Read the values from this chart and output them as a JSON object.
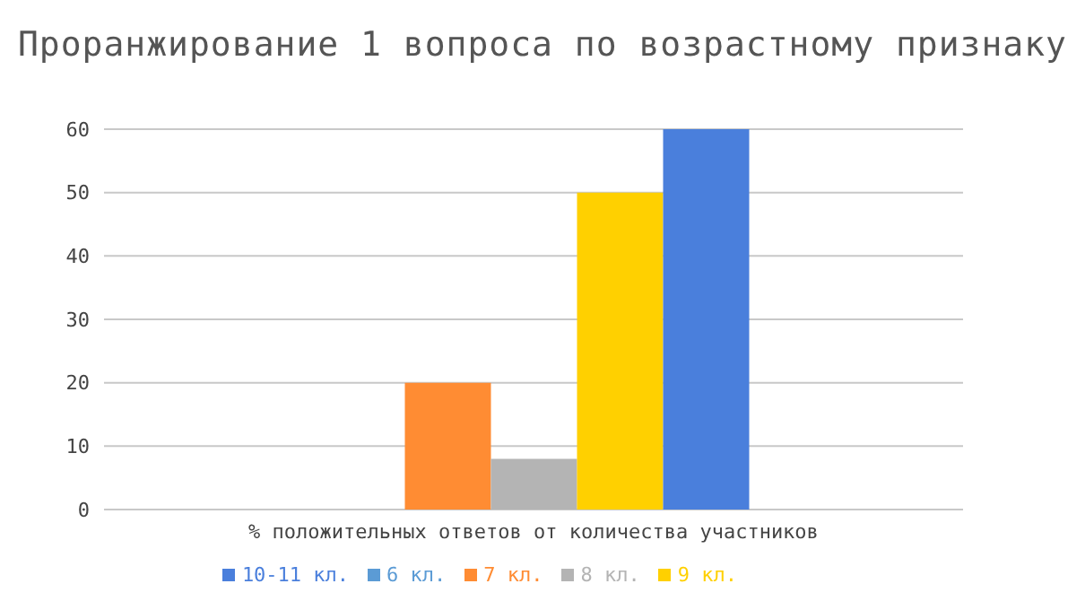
{
  "chart_data": {
    "type": "bar",
    "title": "Проранжирование 1 вопроса по возрастному признаку",
    "categories": [
      "% положительных ответов от количества участников"
    ],
    "series": [
      {
        "name": "6 кл.",
        "color": "#5b9bd5",
        "values": [
          0
        ]
      },
      {
        "name": "7 кл.",
        "color": "#ff8c33",
        "values": [
          20
        ]
      },
      {
        "name": "8 кл.",
        "color": "#b4b4b4",
        "values": [
          8
        ]
      },
      {
        "name": "9 кл.",
        "color": "#ffd000",
        "values": [
          50
        ]
      },
      {
        "name": "10-11 кл.",
        "color": "#4a7fdc",
        "values": [
          60
        ]
      }
    ],
    "ylim": [
      0,
      60
    ],
    "yticks": [
      0,
      10,
      20,
      30,
      40,
      50,
      60
    ],
    "grid": "y",
    "legend": "bottom"
  }
}
